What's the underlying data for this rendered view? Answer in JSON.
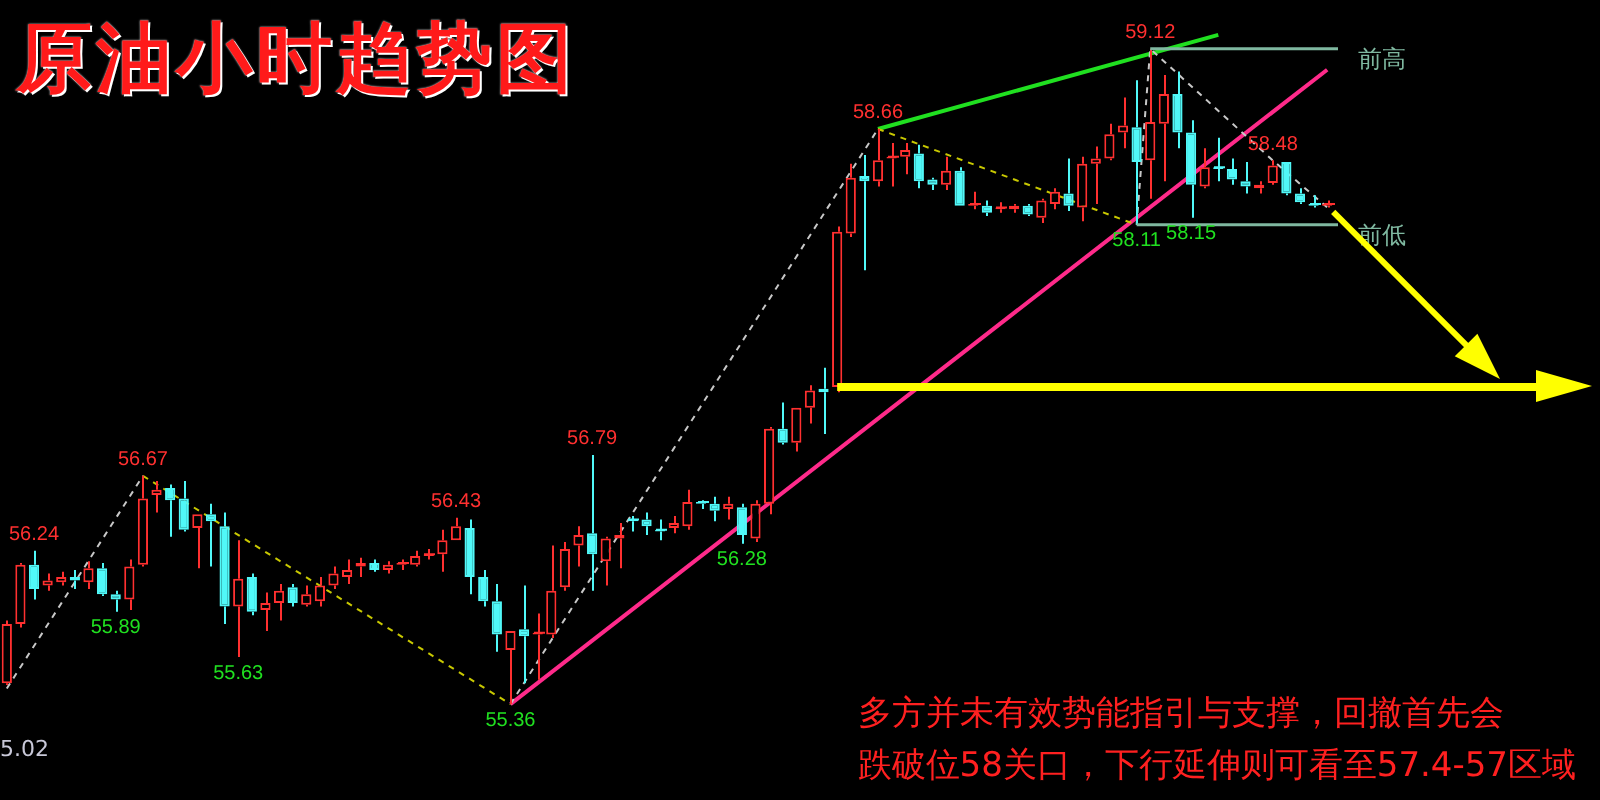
{
  "chart_data": {
    "type": "candlestick",
    "title": "原油小时趋势图",
    "categories": [
      null,
      null,
      null,
      null,
      null,
      null,
      null,
      null,
      null,
      null,
      null,
      null,
      null,
      null,
      null,
      null,
      null,
      null,
      null,
      null,
      null,
      null,
      null,
      null,
      null,
      null,
      null,
      null,
      null,
      null,
      null,
      null,
      null,
      null,
      null,
      null,
      null,
      null,
      null,
      null,
      null,
      null,
      null,
      null,
      null,
      null,
      null,
      null,
      null,
      null,
      null,
      null,
      null,
      null,
      null,
      null,
      null,
      null,
      null,
      null,
      null,
      null,
      null,
      null,
      null,
      null,
      null,
      null,
      null,
      null,
      null,
      null,
      null,
      null,
      null,
      null,
      null,
      null,
      null,
      null,
      null,
      null,
      null,
      null,
      null,
      null,
      null,
      null,
      null,
      null,
      null,
      null,
      null,
      null,
      null,
      null,
      null,
      null
    ],
    "ohlc": [
      [
        55.48,
        55.84,
        55.47,
        55.82
      ],
      [
        55.82,
        56.17,
        55.8,
        56.16
      ],
      [
        56.16,
        56.24,
        55.96,
        56.02
      ],
      [
        56.04,
        56.11,
        56.01,
        56.07
      ],
      [
        56.06,
        56.12,
        56.04,
        56.09
      ],
      [
        56.09,
        56.13,
        56.02,
        56.07
      ],
      [
        56.06,
        56.18,
        56.02,
        56.14
      ],
      [
        56.14,
        56.17,
        55.98,
        55.99
      ],
      [
        55.99,
        56.01,
        55.89,
        55.96
      ],
      [
        55.96,
        56.19,
        55.9,
        56.15
      ],
      [
        56.16,
        56.67,
        56.15,
        56.54
      ],
      [
        56.56,
        56.64,
        56.46,
        56.59
      ],
      [
        56.6,
        56.62,
        56.32,
        56.53
      ],
      [
        56.54,
        56.64,
        56.35,
        56.36
      ],
      [
        56.37,
        56.45,
        56.14,
        56.45
      ],
      [
        56.45,
        56.51,
        56.15,
        56.41
      ],
      [
        56.38,
        56.46,
        55.82,
        55.92
      ],
      [
        55.92,
        56.3,
        55.63,
        56.08
      ],
      [
        56.09,
        56.11,
        55.87,
        55.89
      ],
      [
        55.9,
        56.0,
        55.78,
        55.94
      ],
      [
        55.94,
        56.05,
        55.84,
        56.01
      ],
      [
        56.03,
        56.05,
        55.92,
        55.94
      ],
      [
        55.93,
        56.04,
        55.92,
        55.99
      ],
      [
        55.95,
        56.09,
        55.92,
        56.04
      ],
      [
        56.04,
        56.15,
        56.02,
        56.11
      ],
      [
        56.09,
        56.19,
        56.05,
        56.13
      ],
      [
        56.15,
        56.2,
        56.09,
        56.17
      ],
      [
        56.17,
        56.19,
        56.12,
        56.13
      ],
      [
        56.13,
        56.18,
        56.11,
        56.16
      ],
      [
        56.16,
        56.19,
        56.13,
        56.17
      ],
      [
        56.16,
        56.24,
        56.15,
        56.21
      ],
      [
        56.21,
        56.25,
        56.19,
        56.22
      ],
      [
        56.22,
        56.36,
        56.12,
        56.3
      ],
      [
        56.3,
        56.43,
        56.3,
        56.38
      ],
      [
        56.37,
        56.42,
        55.99,
        56.09
      ],
      [
        56.09,
        56.13,
        55.92,
        55.95
      ],
      [
        55.95,
        56.05,
        55.66,
        55.76
      ],
      [
        55.67,
        55.78,
        55.36,
        55.78
      ],
      [
        55.79,
        56.04,
        55.48,
        55.75
      ],
      [
        55.76,
        55.88,
        55.5,
        55.77
      ],
      [
        55.76,
        56.27,
        55.74,
        56.01
      ],
      [
        56.03,
        56.29,
        56.01,
        56.25
      ],
      [
        56.27,
        56.38,
        56.15,
        56.33
      ],
      [
        56.34,
        56.79,
        56.01,
        56.22
      ],
      [
        56.18,
        56.32,
        56.04,
        56.31
      ],
      [
        56.31,
        56.4,
        56.14,
        56.33
      ],
      [
        56.42,
        56.44,
        56.35,
        56.41
      ],
      [
        56.42,
        56.46,
        56.33,
        56.38
      ],
      [
        56.36,
        56.42,
        56.3,
        56.35
      ],
      [
        56.37,
        56.44,
        56.34,
        56.4
      ],
      [
        56.38,
        56.59,
        56.36,
        56.52
      ],
      [
        56.52,
        56.53,
        56.48,
        56.51
      ],
      [
        56.51,
        56.55,
        56.41,
        56.47
      ],
      [
        56.48,
        56.55,
        56.42,
        56.51
      ],
      [
        56.49,
        56.51,
        56.28,
        56.33
      ],
      [
        56.31,
        56.53,
        56.29,
        56.51
      ],
      [
        56.51,
        56.95,
        56.45,
        56.94
      ],
      [
        56.94,
        57.09,
        56.85,
        56.86
      ],
      [
        56.86,
        57.06,
        56.81,
        57.06
      ],
      [
        57.06,
        57.19,
        56.97,
        57.16
      ],
      [
        57.17,
        57.29,
        56.91,
        57.15
      ],
      [
        57.18,
        58.1,
        57.15,
        58.07
      ],
      [
        58.06,
        58.46,
        58.04,
        58.38
      ],
      [
        58.39,
        58.51,
        57.85,
        58.36
      ],
      [
        58.36,
        58.66,
        58.33,
        58.48
      ],
      [
        58.49,
        58.58,
        58.33,
        58.5
      ],
      [
        58.5,
        58.58,
        58.4,
        58.54
      ],
      [
        58.52,
        58.57,
        58.32,
        58.36
      ],
      [
        58.37,
        58.38,
        58.31,
        58.34
      ],
      [
        58.34,
        58.5,
        58.31,
        58.42
      ],
      [
        58.42,
        58.44,
        58.22,
        58.22
      ],
      [
        58.22,
        58.3,
        58.2,
        58.23
      ],
      [
        58.22,
        58.25,
        58.16,
        58.18
      ],
      [
        58.2,
        58.24,
        58.18,
        58.21
      ],
      [
        58.2,
        58.23,
        58.18,
        58.22
      ],
      [
        58.22,
        58.23,
        58.16,
        58.17
      ],
      [
        58.15,
        58.26,
        58.12,
        58.25
      ],
      [
        58.23,
        58.32,
        58.2,
        58.3
      ],
      [
        58.29,
        58.49,
        58.19,
        58.22
      ],
      [
        58.21,
        58.5,
        58.13,
        58.46
      ],
      [
        58.46,
        58.56,
        58.23,
        58.49
      ],
      [
        58.49,
        58.69,
        58.48,
        58.63
      ],
      [
        58.64,
        58.84,
        58.55,
        58.68
      ],
      [
        58.67,
        58.94,
        58.11,
        58.47
      ],
      [
        58.48,
        59.12,
        58.26,
        58.7
      ],
      [
        58.69,
        58.97,
        58.36,
        58.86
      ],
      [
        58.86,
        58.99,
        58.55,
        58.64
      ],
      [
        58.64,
        58.71,
        58.15,
        58.34
      ],
      [
        58.33,
        58.55,
        58.32,
        58.44
      ],
      [
        58.44,
        58.61,
        58.36,
        58.43
      ],
      [
        58.43,
        58.49,
        58.34,
        58.37
      ],
      [
        58.36,
        58.47,
        58.29,
        58.33
      ],
      [
        58.32,
        58.36,
        58.29,
        58.34
      ],
      [
        58.35,
        58.48,
        58.34,
        58.45
      ],
      [
        58.47,
        58.47,
        58.28,
        58.29
      ],
      [
        58.29,
        58.32,
        58.23,
        58.24
      ],
      [
        58.23,
        58.28,
        58.21,
        58.22
      ],
      [
        58.22,
        58.25,
        58.21,
        58.23
      ]
    ],
    "colors": [
      "#ff3030",
      "#ff3030",
      "#50f8f8",
      "#ff3030",
      "#ff3030",
      "#50f8f8",
      "#ff3030",
      "#50f8f8",
      "#50f8f8",
      "#ff3030",
      "#ff3030",
      "#ff3030",
      "#50f8f8",
      "#50f8f8",
      "#ff3030",
      "#50f8f8",
      "#50f8f8",
      "#ff3030",
      "#50f8f8",
      "#ff3030",
      "#ff3030",
      "#50f8f8",
      "#ff3030",
      "#ff3030",
      "#ff3030",
      "#ff3030",
      "#ff3030",
      "#50f8f8",
      "#ff3030",
      "#ff3030",
      "#ff3030",
      "#ff3030",
      "#ff3030",
      "#ff3030",
      "#50f8f8",
      "#50f8f8",
      "#50f8f8",
      "#ff3030",
      "#50f8f8",
      "#ff3030",
      "#ff3030",
      "#ff3030",
      "#ff3030",
      "#50f8f8",
      "#ff3030",
      "#ff3030",
      "#50f8f8",
      "#50f8f8",
      "#50f8f8",
      "#ff3030",
      "#ff3030",
      "#50f8f8",
      "#50f8f8",
      "#ff3030",
      "#50f8f8",
      "#ff3030",
      "#ff3030",
      "#50f8f8",
      "#ff3030",
      "#ff3030",
      "#50f8f8",
      "#ff3030",
      "#ff3030",
      "#50f8f8",
      "#ff3030",
      "#ff3030",
      "#ff3030",
      "#50f8f8",
      "#50f8f8",
      "#ff3030",
      "#50f8f8",
      "#ff3030",
      "#50f8f8",
      "#ff3030",
      "#ff3030",
      "#50f8f8",
      "#ff3030",
      "#ff3030",
      "#50f8f8",
      "#ff3030",
      "#ff3030",
      "#ff3030",
      "#ff3030",
      "#50f8f8",
      "#ff3030",
      "#ff3030",
      "#50f8f8",
      "#50f8f8",
      "#ff3030",
      "#50f8f8",
      "#50f8f8",
      "#50f8f8",
      "#ff3030",
      "#ff3030",
      "#50f8f8",
      "#50f8f8",
      "#50f8f8",
      "#ff3030"
    ],
    "series": [
      {
        "type": "line",
        "color": "#c8c8c8",
        "line_style": "dashed",
        "values": [
          55.45,
          null,
          null,
          null,
          null,
          null,
          null,
          null,
          null,
          null,
          56.67,
          null,
          null,
          null,
          null,
          null,
          null,
          null,
          null,
          null,
          null,
          null,
          null,
          null,
          null,
          null,
          null,
          null,
          null,
          null,
          null,
          null,
          null,
          null,
          null,
          null,
          null,
          null,
          null,
          null,
          null,
          null,
          null,
          null,
          null,
          null,
          null,
          null,
          null,
          null,
          null,
          null,
          null,
          null,
          null,
          null,
          null,
          null,
          null,
          null,
          null,
          null,
          null,
          null,
          null,
          null,
          null,
          null,
          null,
          null,
          null,
          null,
          null,
          null,
          null,
          null,
          null,
          null,
          null,
          null,
          null,
          null,
          null,
          null,
          null,
          null,
          null,
          null,
          null,
          null,
          null,
          null,
          null,
          null,
          null,
          null,
          null,
          null
        ]
      },
      {
        "type": "line",
        "color": "#c8c800",
        "line_style": "dashed",
        "values": [
          null,
          null,
          null,
          null,
          null,
          null,
          null,
          null,
          null,
          null,
          56.67,
          null,
          null,
          null,
          null,
          null,
          null,
          null,
          null,
          null,
          null,
          null,
          null,
          null,
          null,
          null,
          null,
          null,
          null,
          null,
          null,
          null,
          null,
          null,
          null,
          null,
          null,
          55.36,
          null,
          null,
          null,
          null,
          null,
          null,
          null,
          null,
          null,
          null,
          null,
          null,
          null,
          null,
          null,
          null,
          null,
          null,
          null,
          null,
          null,
          null,
          null,
          null,
          null,
          null,
          null,
          null,
          null,
          null,
          null,
          null,
          null,
          null,
          null,
          null,
          null,
          null,
          null,
          null,
          null,
          null,
          null,
          null,
          null,
          null,
          null,
          null,
          null,
          null,
          null,
          null,
          null,
          null,
          null,
          null,
          null,
          null,
          null,
          null
        ]
      },
      {
        "type": "line",
        "color": "#c8c8c8",
        "line_style": "dashed",
        "values": [
          null,
          null,
          null,
          null,
          null,
          null,
          null,
          null,
          null,
          null,
          null,
          null,
          null,
          null,
          null,
          null,
          null,
          null,
          null,
          null,
          null,
          null,
          null,
          null,
          null,
          null,
          null,
          null,
          null,
          null,
          null,
          null,
          null,
          null,
          null,
          null,
          null,
          55.36,
          null,
          null,
          null,
          null,
          null,
          null,
          null,
          null,
          null,
          null,
          null,
          null,
          null,
          null,
          null,
          null,
          null,
          null,
          null,
          null,
          null,
          null,
          null,
          null,
          null,
          null,
          58.66,
          null,
          null,
          null,
          null,
          null,
          null,
          null,
          null,
          null,
          null,
          null,
          null,
          null,
          null,
          null,
          null,
          null,
          null,
          null,
          null,
          null,
          null,
          null,
          null,
          null,
          null,
          null,
          null,
          null,
          null,
          null,
          null,
          null
        ]
      },
      {
        "type": "line",
        "color": "#c8c800",
        "line_style": "dashed",
        "values": [
          null,
          null,
          null,
          null,
          null,
          null,
          null,
          null,
          null,
          null,
          null,
          null,
          null,
          null,
          null,
          null,
          null,
          null,
          null,
          null,
          null,
          null,
          null,
          null,
          null,
          null,
          null,
          null,
          null,
          null,
          null,
          null,
          null,
          null,
          null,
          null,
          null,
          null,
          null,
          null,
          null,
          null,
          null,
          null,
          null,
          null,
          null,
          null,
          null,
          null,
          null,
          null,
          null,
          null,
          null,
          null,
          null,
          null,
          null,
          null,
          null,
          null,
          null,
          null,
          58.66,
          null,
          null,
          null,
          null,
          null,
          null,
          null,
          null,
          null,
          null,
          null,
          null,
          null,
          null,
          null,
          null,
          null,
          null,
          58.11,
          null,
          null,
          null,
          null,
          null,
          null,
          null,
          null,
          null,
          null,
          null,
          null,
          null,
          null
        ]
      },
      {
        "type": "line",
        "color": "#c8c8c8",
        "line_style": "dashed",
        "values": [
          null,
          null,
          null,
          null,
          null,
          null,
          null,
          null,
          null,
          null,
          null,
          null,
          null,
          null,
          null,
          null,
          null,
          null,
          null,
          null,
          null,
          null,
          null,
          null,
          null,
          null,
          null,
          null,
          null,
          null,
          null,
          null,
          null,
          null,
          null,
          null,
          null,
          null,
          null,
          null,
          null,
          null,
          null,
          null,
          null,
          null,
          null,
          null,
          null,
          null,
          null,
          null,
          null,
          null,
          null,
          null,
          null,
          null,
          null,
          null,
          null,
          null,
          null,
          null,
          null,
          null,
          null,
          null,
          null,
          null,
          null,
          null,
          null,
          null,
          null,
          null,
          null,
          null,
          null,
          null,
          null,
          null,
          null,
          58.11,
          59.12,
          null,
          null,
          null,
          null,
          null,
          null,
          null,
          null,
          58.48,
          null,
          null,
          null,
          58.21
        ]
      },
      {
        "type": "line",
        "color": "#ff2a8a",
        "line_style": "solid",
        "values": [
          null,
          null,
          null,
          null,
          null,
          null,
          null,
          null,
          null,
          null,
          null,
          null,
          null,
          null,
          null,
          null,
          null,
          null,
          null,
          null,
          null,
          null,
          null,
          null,
          null,
          null,
          null,
          null,
          null,
          null,
          null,
          null,
          null,
          null,
          null,
          null,
          null,
          55.36,
          null,
          null,
          null,
          null,
          null,
          null,
          null,
          null,
          null,
          null,
          null,
          null,
          null,
          null,
          null,
          null,
          null,
          null,
          null,
          null,
          null,
          null,
          null,
          null,
          null,
          null,
          null,
          null,
          null,
          null,
          null,
          null,
          null,
          null,
          null,
          null,
          null,
          null,
          null,
          null,
          null,
          null,
          null,
          null,
          null,
          null,
          null,
          null,
          null,
          null,
          null,
          null,
          null,
          null,
          null,
          null,
          null,
          null,
          null,
          59.0
        ]
      },
      {
        "type": "line",
        "color": "#20e020",
        "line_style": "solid",
        "values": [
          null,
          null,
          null,
          null,
          null,
          null,
          null,
          null,
          null,
          null,
          null,
          null,
          null,
          null,
          null,
          null,
          null,
          null,
          null,
          null,
          null,
          null,
          null,
          null,
          null,
          null,
          null,
          null,
          null,
          null,
          null,
          null,
          null,
          null,
          null,
          null,
          null,
          null,
          null,
          null,
          null,
          null,
          null,
          null,
          null,
          null,
          null,
          null,
          null,
          null,
          null,
          null,
          null,
          null,
          null,
          null,
          null,
          null,
          null,
          null,
          null,
          null,
          null,
          null,
          58.66,
          null,
          null,
          null,
          null,
          null,
          null,
          null,
          null,
          null,
          null,
          null,
          null,
          null,
          null,
          null,
          null,
          null,
          null,
          null,
          null,
          null,
          null,
          null,
          null,
          59.2,
          null,
          null,
          null,
          null,
          null,
          null,
          null,
          null
        ]
      }
    ],
    "ref_lines": [
      {
        "axis": "y",
        "value": 59.12,
        "label": "前高",
        "color": "#7fb8a0"
      },
      {
        "axis": "y",
        "value": 58.11,
        "label": "前低",
        "color": "#7fb8a0"
      },
      {
        "axis": "y",
        "value": 57.18,
        "color": "#ffff00"
      }
    ],
    "annotations": [
      {
        "text": "56.24",
        "y": 56.24
      },
      {
        "text": "56.67",
        "y": 56.67
      },
      {
        "text": "55.89",
        "y": 55.89
      },
      {
        "text": "55.63",
        "y": 55.63
      },
      {
        "text": "56.43",
        "y": 56.43
      },
      {
        "text": "55.36",
        "y": 55.36
      },
      {
        "text": "56.79",
        "y": 56.79
      },
      {
        "text": "56.28",
        "y": 56.28
      },
      {
        "text": "58.66",
        "y": 58.66
      },
      {
        "text": "58.11",
        "y": 58.11
      },
      {
        "text": "59.12",
        "y": 59.12
      },
      {
        "text": "58.15",
        "y": 58.15
      },
      {
        "text": "58.48",
        "y": 58.48
      },
      "5.02",
      "多方并未有效势能指引与支撑，回撤首先会",
      "跌破位58关口，下行延伸则可看至57.4-57区域"
    ],
    "ylim": [
      54.81,
      59.4
    ],
    "grid": false,
    "legend": false,
    "tick_labels": false
  }
}
